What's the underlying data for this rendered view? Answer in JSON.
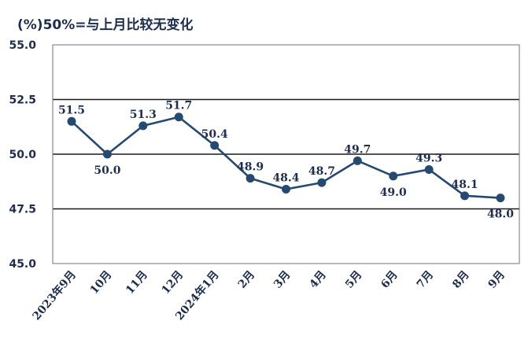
{
  "chart_data": {
    "type": "line",
    "title": "(%)50%=与上月比较无变化",
    "xlabel": "",
    "ylabel": "",
    "categories": [
      "2023年9月",
      "10月",
      "11月",
      "12月",
      "2024年1月",
      "2月",
      "3月",
      "4月",
      "5月",
      "6月",
      "7月",
      "8月",
      "9月"
    ],
    "values": [
      51.5,
      50.0,
      51.3,
      51.7,
      50.4,
      48.9,
      48.4,
      48.7,
      49.7,
      49.0,
      49.3,
      48.1,
      48.0
    ],
    "data_labels": [
      "51.5",
      "50.0",
      "51.3",
      "51.7",
      "50.4",
      "48.9",
      "48.4",
      "48.7",
      "49.7",
      "49.0",
      "49.3",
      "48.1",
      "48.0"
    ],
    "label_positions": [
      "above",
      "below",
      "above",
      "above",
      "above",
      "above",
      "above",
      "above",
      "above",
      "below",
      "above",
      "above",
      "below"
    ],
    "ylim": [
      45.0,
      55.0
    ],
    "yticks": [
      "45.0",
      "47.5",
      "50.0",
      "52.5",
      "55.0"
    ],
    "gridlines": [
      47.5,
      50.0,
      52.5
    ],
    "grid": true,
    "legend": "none",
    "colors": {
      "line": "#26496f",
      "marker": "#26496f",
      "text": "#1f2d4d",
      "grid": "#1a1a1a",
      "axis": "#6d7480"
    }
  }
}
